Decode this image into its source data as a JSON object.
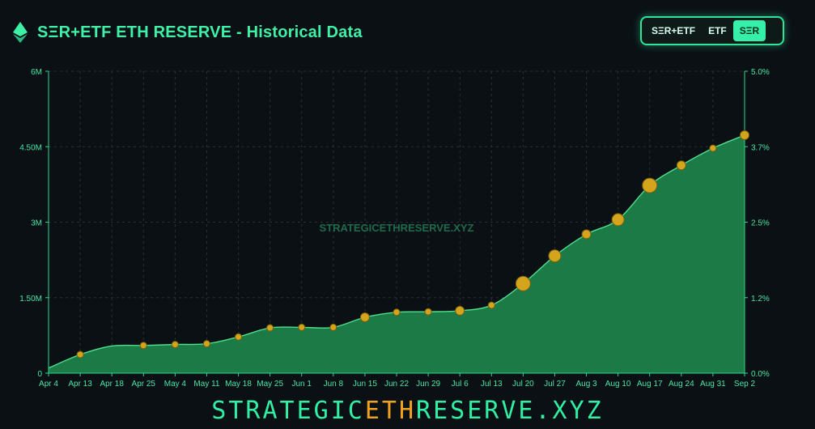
{
  "header": {
    "title": "SΞR+ETF ETH RESERVE - Historical Data"
  },
  "toggle": {
    "buttons": [
      {
        "label": "SΞR+ETF",
        "active": false
      },
      {
        "label": "ETF",
        "active": false
      },
      {
        "label": "SΞR",
        "active": true
      }
    ]
  },
  "watermark": "STRATEGICETHRESERVE.XYZ",
  "footer": {
    "pre": "STRATEGIC",
    "highlight": "ETH",
    "post": "RESERVE.XYZ"
  },
  "colors": {
    "accent": "#30f0a4",
    "area": "#1b7a45",
    "marker": "#d4a51c",
    "highlight": "#f0a21e"
  },
  "chart_data": {
    "type": "area",
    "categories": [
      "Apr 4",
      "Apr 13",
      "Apr 18",
      "Apr 25",
      "May 4",
      "May 11",
      "May 18",
      "May 25",
      "Jun 1",
      "Jun 8",
      "Jun 15",
      "Jun 22",
      "Jun 29",
      "Jul 6",
      "Jul 13",
      "Jul 20",
      "Jul 27",
      "Aug 3",
      "Aug 10",
      "Aug 17",
      "Aug 24",
      "Aug 31",
      "Sep 2"
    ],
    "values": [
      100000,
      370000,
      540000,
      550000,
      570000,
      585000,
      720000,
      900000,
      910000,
      910000,
      1110000,
      1210000,
      1220000,
      1240000,
      1350000,
      1780000,
      2330000,
      2760000,
      3050000,
      3730000,
      4130000,
      4470000,
      4730000
    ],
    "marker_sizes": [
      0,
      1,
      0,
      1,
      1,
      1,
      1,
      1,
      1,
      1,
      2,
      1,
      1,
      2,
      1,
      3,
      2.5,
      2,
      2.5,
      3,
      2,
      1,
      2
    ],
    "ylim": [
      0,
      6000000
    ],
    "yticks": [
      {
        "value": 0,
        "label": "0"
      },
      {
        "value": 1500000,
        "label": "1.50M"
      },
      {
        "value": 3000000,
        "label": "3M"
      },
      {
        "value": 4500000,
        "label": "4.50M"
      },
      {
        "value": 6000000,
        "label": "6M"
      }
    ],
    "y2ticks": [
      "0.0%",
      "1.2%",
      "2.5%",
      "3.7%",
      "5.0%"
    ],
    "grid": true,
    "legend": "none"
  }
}
